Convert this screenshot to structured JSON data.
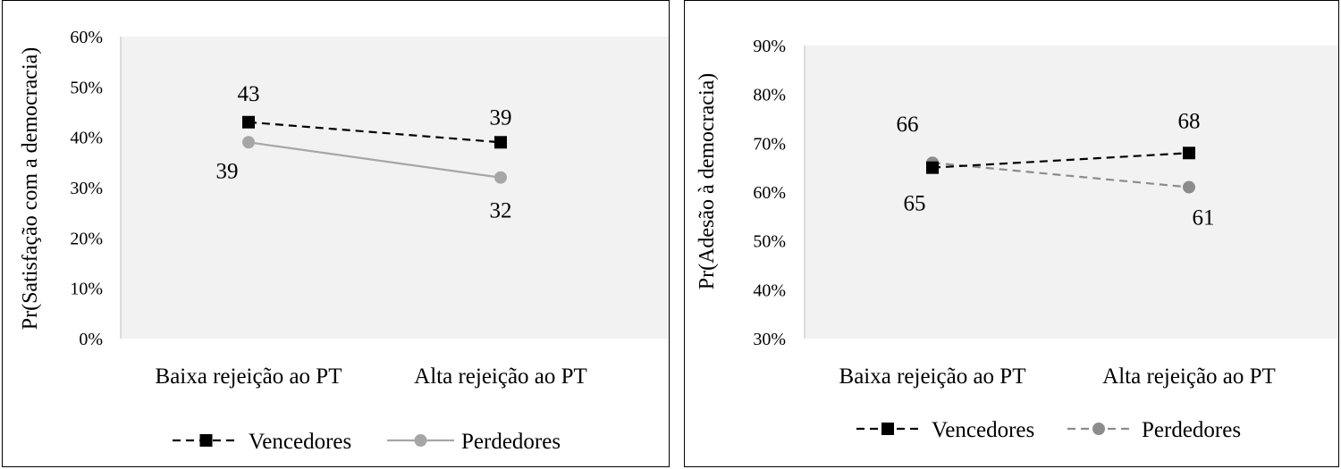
{
  "chart_data": [
    {
      "type": "line",
      "ylabel": "Pr(Satisfação com a democracia)",
      "categories": [
        "Baixa rejeição ao PT",
        "Alta rejeição ao PT"
      ],
      "ylim": [
        0,
        60
      ],
      "yticks": [
        0,
        10,
        20,
        30,
        40,
        50,
        60
      ],
      "ytick_labels": [
        "0%",
        "10%",
        "20%",
        "30%",
        "40%",
        "50%",
        "60%"
      ],
      "grid": false,
      "plot_background": "#f2f2f2",
      "legend_position": "bottom",
      "series": [
        {
          "name": "Vencedores",
          "values": [
            43,
            39
          ],
          "labels": [
            "43",
            "39"
          ],
          "color": "#000000",
          "dash": "dashed",
          "marker": "square"
        },
        {
          "name": "Perdedores",
          "values": [
            39,
            32
          ],
          "labels": [
            "39",
            "32"
          ],
          "color": "#a6a6a6",
          "dash": "solid",
          "marker": "circle"
        }
      ]
    },
    {
      "type": "line",
      "ylabel": "Pr(Adesão à democracia)",
      "categories": [
        "Baixa rejeição ao PT",
        "Alta rejeição ao PT"
      ],
      "ylim": [
        30,
        90
      ],
      "yticks": [
        30,
        40,
        50,
        60,
        70,
        80,
        90
      ],
      "ytick_labels": [
        "30%",
        "40%",
        "50%",
        "60%",
        "70%",
        "80%",
        "90%"
      ],
      "grid": false,
      "plot_background": "#f2f2f2",
      "legend_position": "bottom",
      "series": [
        {
          "name": "Vencedores",
          "values": [
            65,
            68
          ],
          "labels": [
            "65",
            "68"
          ],
          "color": "#000000",
          "dash": "dashed",
          "marker": "square"
        },
        {
          "name": "Perdedores",
          "values": [
            66,
            61
          ],
          "labels": [
            "66",
            "61"
          ],
          "color": "#8c8c8c",
          "dash": "dashed",
          "marker": "circle"
        }
      ]
    }
  ]
}
